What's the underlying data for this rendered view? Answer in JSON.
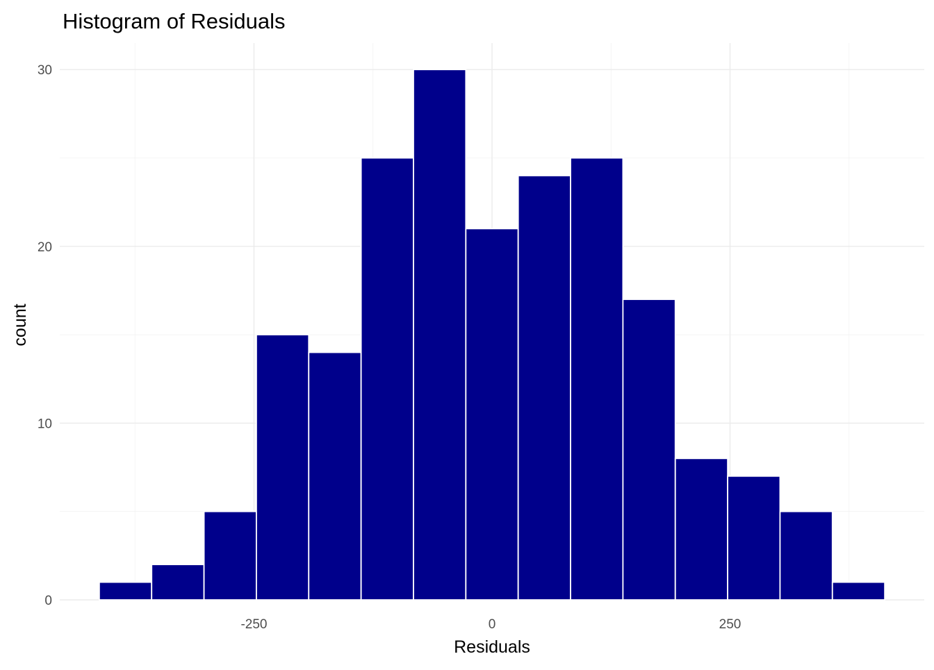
{
  "chart_data": {
    "type": "bar",
    "title": "Histogram of Residuals",
    "xlabel": "Residuals",
    "ylabel": "count",
    "bin_width": 55,
    "bins": [
      {
        "start": -412.5,
        "end": -357.5,
        "count": 1
      },
      {
        "start": -357.5,
        "end": -302.5,
        "count": 2
      },
      {
        "start": -302.5,
        "end": -247.5,
        "count": 5
      },
      {
        "start": -247.5,
        "end": -192.5,
        "count": 15
      },
      {
        "start": -192.5,
        "end": -137.5,
        "count": 14
      },
      {
        "start": -137.5,
        "end": -82.5,
        "count": 25
      },
      {
        "start": -82.5,
        "end": -27.5,
        "count": 30
      },
      {
        "start": -27.5,
        "end": 27.5,
        "count": 21
      },
      {
        "start": 27.5,
        "end": 82.5,
        "count": 24
      },
      {
        "start": 82.5,
        "end": 137.5,
        "count": 25
      },
      {
        "start": 137.5,
        "end": 192.5,
        "count": 17
      },
      {
        "start": 192.5,
        "end": 247.5,
        "count": 8
      },
      {
        "start": 247.5,
        "end": 302.5,
        "count": 7
      },
      {
        "start": 302.5,
        "end": 357.5,
        "count": 5
      },
      {
        "start": 357.5,
        "end": 412.5,
        "count": 1
      }
    ],
    "xlim": [
      -454,
      454
    ],
    "ylim": [
      0,
      31.5
    ],
    "x_ticks": [
      {
        "value": -250,
        "label": "-250"
      },
      {
        "value": 0,
        "label": "0"
      },
      {
        "value": 250,
        "label": "250"
      }
    ],
    "x_minor_ticks": [
      -375,
      -125,
      125,
      375
    ],
    "y_ticks": [
      {
        "value": 0,
        "label": "0"
      },
      {
        "value": 10,
        "label": "10"
      },
      {
        "value": 20,
        "label": "20"
      },
      {
        "value": 30,
        "label": "30"
      }
    ],
    "y_minor_ticks": [
      5,
      15,
      25
    ],
    "grid": true,
    "bar_color": "#00008B",
    "bar_outline_color": "#FFFFFF",
    "background_color": "#FFFFFF"
  }
}
